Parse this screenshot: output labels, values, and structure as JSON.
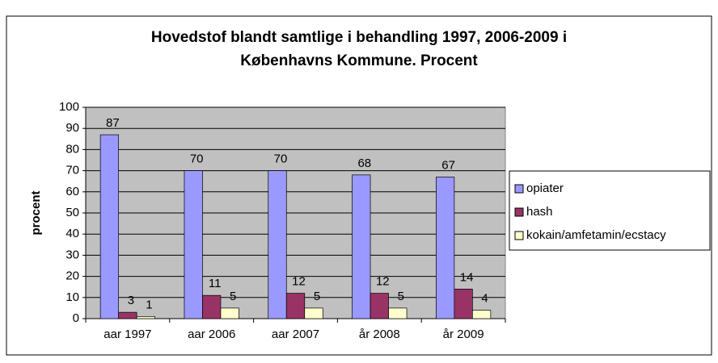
{
  "chart_data": {
    "type": "bar",
    "title": [
      "Hovedstof blandt samtlige i behandling 1997, 2006-2009 i",
      "Københavns Kommune. Procent"
    ],
    "y_label": "procent",
    "categories": [
      "aar 1997",
      "aar 2006",
      "aar 2007",
      "år 2008",
      "år 2009"
    ],
    "series": [
      {
        "name": "opiater",
        "color": "#9999ff",
        "values": [
          87,
          70,
          70,
          68,
          67
        ]
      },
      {
        "name": "hash",
        "color": "#993366",
        "values": [
          3,
          11,
          12,
          12,
          14
        ]
      },
      {
        "name": "kokain/amfetamin/ecstacy",
        "color": "#ffffcc",
        "values": [
          1,
          5,
          5,
          5,
          4
        ]
      }
    ],
    "ylim": [
      0,
      100
    ],
    "yticks": [
      0,
      10,
      20,
      30,
      40,
      50,
      60,
      70,
      80,
      90,
      100
    ],
    "grid": true,
    "legend": "right"
  }
}
